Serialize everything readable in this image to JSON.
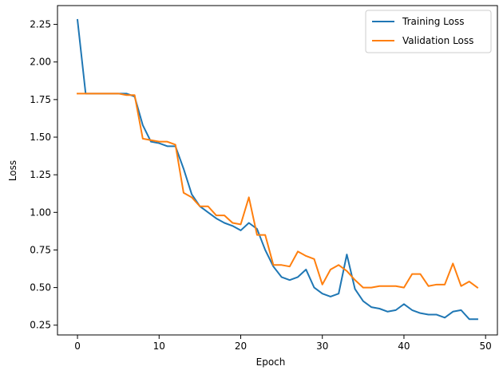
{
  "chart_data": {
    "type": "line",
    "title": "",
    "xlabel": "Epoch",
    "ylabel": "Loss",
    "xlim": [
      -2.45,
      51.45
    ],
    "ylim": [
      0.185,
      2.375
    ],
    "xticks": [
      0,
      10,
      20,
      30,
      40,
      50
    ],
    "yticks": [
      0.25,
      0.5,
      0.75,
      1.0,
      1.25,
      1.5,
      1.75,
      2.0,
      2.25
    ],
    "ytick_labels": [
      "0.25",
      "0.50",
      "0.75",
      "1.00",
      "1.25",
      "1.50",
      "1.75",
      "2.00",
      "2.25"
    ],
    "grid": false,
    "legend": "top-right",
    "x": [
      0,
      1,
      2,
      3,
      4,
      5,
      6,
      7,
      8,
      9,
      10,
      11,
      12,
      13,
      14,
      15,
      16,
      17,
      18,
      19,
      20,
      21,
      22,
      23,
      24,
      25,
      26,
      27,
      28,
      29,
      30,
      31,
      32,
      33,
      34,
      35,
      36,
      37,
      38,
      39,
      40,
      41,
      42,
      43,
      44,
      45,
      46,
      47,
      48,
      49
    ],
    "series": [
      {
        "name": "Training Loss",
        "color": "#1f77b4",
        "values": [
          2.28,
          1.79,
          1.79,
          1.79,
          1.79,
          1.79,
          1.79,
          1.77,
          1.58,
          1.47,
          1.46,
          1.44,
          1.44,
          1.29,
          1.12,
          1.04,
          1.0,
          0.96,
          0.93,
          0.91,
          0.88,
          0.93,
          0.89,
          0.75,
          0.64,
          0.57,
          0.55,
          0.57,
          0.62,
          0.5,
          0.46,
          0.44,
          0.46,
          0.72,
          0.49,
          0.41,
          0.37,
          0.36,
          0.34,
          0.35,
          0.39,
          0.35,
          0.33,
          0.32,
          0.32,
          0.3,
          0.34,
          0.35,
          0.29,
          0.29
        ]
      },
      {
        "name": "Validation Loss",
        "color": "#ff7f0e",
        "values": [
          1.79,
          1.79,
          1.79,
          1.79,
          1.79,
          1.79,
          1.78,
          1.78,
          1.49,
          1.48,
          1.47,
          1.47,
          1.45,
          1.13,
          1.1,
          1.04,
          1.04,
          0.98,
          0.98,
          0.93,
          0.92,
          1.1,
          0.85,
          0.85,
          0.65,
          0.65,
          0.64,
          0.74,
          0.71,
          0.69,
          0.52,
          0.62,
          0.65,
          0.61,
          0.55,
          0.5,
          0.5,
          0.51,
          0.51,
          0.51,
          0.5,
          0.59,
          0.59,
          0.51,
          0.52,
          0.52,
          0.66,
          0.51,
          0.54,
          0.5
        ]
      }
    ]
  }
}
